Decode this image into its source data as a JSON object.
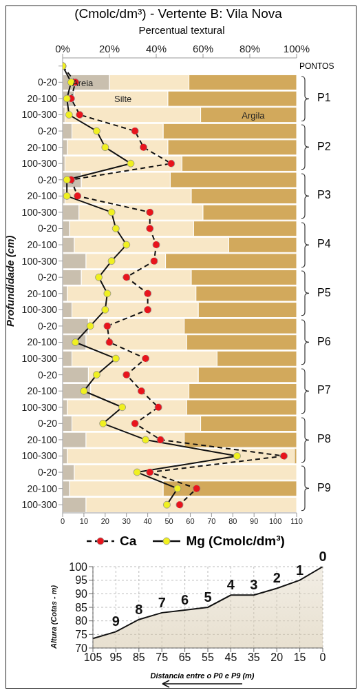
{
  "chart_data": [
    {
      "type": "bar",
      "orientation": "horizontal",
      "stacked": true,
      "title": "(Cmolc/dm³) - Vertente B: Vila Nova",
      "x2label": "Percentual textural",
      "ylabel": "Profundidade (cm)",
      "categories": [
        null,
        "0-20",
        "20-100",
        "100-300",
        "0-20",
        "20-100",
        "100-300",
        "0-20",
        "20-100",
        "100-300",
        "0-20",
        "20-100",
        "100-300",
        "0-20",
        "20-100",
        "100-300",
        "0-20",
        "20-100",
        "100-300",
        "0-20",
        "20-100",
        "100-300",
        "0-20",
        "20-100",
        "100-300",
        "0-20",
        "20-100",
        "100-300"
      ],
      "series": [
        {
          "name": "Areia",
          "color": "#c9bfae",
          "axis": "x2",
          "values": [
            null,
            20,
            5,
            1,
            4,
            2,
            1,
            8,
            1,
            7,
            3,
            5,
            10,
            8,
            2,
            4,
            11,
            10,
            4,
            11,
            12,
            2,
            4,
            10,
            2,
            5,
            3,
            10
          ]
        },
        {
          "name": "Silte",
          "color": "#f8e7c6",
          "axis": "x2",
          "values": [
            null,
            34,
            40,
            58,
            39,
            43,
            50,
            38,
            54,
            53,
            53,
            66,
            34,
            47,
            55,
            54,
            41,
            43,
            62,
            47,
            42,
            51,
            55,
            42,
            97,
            95,
            40,
            90
          ]
        },
        {
          "name": "Argila",
          "color": "#d2a95c",
          "axis": "x2",
          "values": [
            null,
            46,
            55,
            41,
            57,
            55,
            49,
            54,
            45,
            40,
            44,
            29,
            56,
            45,
            43,
            42,
            48,
            47,
            34,
            42,
            46,
            47,
            41,
            48,
            1,
            0,
            57,
            0
          ]
        },
        {
          "name": "Ca",
          "type": "line",
          "color": "#e8141c",
          "line_style": "dashed",
          "values": [
            0,
            6,
            4,
            8,
            34,
            38,
            51,
            4,
            7,
            41,
            41,
            44,
            43,
            30,
            40,
            40,
            21,
            22,
            39,
            30,
            37,
            45,
            34,
            46,
            104,
            41,
            63,
            55
          ]
        },
        {
          "name": "Mg (Cmolc/dm³)",
          "type": "line",
          "color": "#f0f020",
          "line_style": "solid",
          "values": [
            0,
            4,
            2,
            3,
            16,
            20,
            32,
            2,
            2,
            23,
            25,
            30,
            23,
            17,
            21,
            20,
            13,
            6,
            25,
            16,
            10,
            28,
            19,
            39,
            82,
            35,
            54,
            49
          ]
        }
      ],
      "x2lim": [
        0,
        100
      ],
      "x2ticks": [
        {
          "value": 0,
          "label": "0%"
        },
        {
          "value": 20,
          "label": "20%"
        },
        {
          "value": 40,
          "label": "40%"
        },
        {
          "value": 60,
          "label": "60%"
        },
        {
          "value": 80,
          "label": "80%"
        },
        {
          "value": 100,
          "label": "100%"
        }
      ],
      "xlim": [
        0,
        110
      ],
      "xticks": [
        0,
        10,
        20,
        30,
        40,
        50,
        60,
        70,
        80,
        90,
        100,
        110
      ],
      "marker": "circle",
      "legend": "bottom",
      "annotations": [
        "PONTOS",
        "P1",
        "P2",
        "P3",
        "P4",
        "P5",
        "P6",
        "P7",
        "P8",
        "P9"
      ]
    },
    {
      "type": "area",
      "categories": [
        "105",
        "95",
        "85",
        "75",
        "65",
        "55",
        "45",
        "35",
        "20",
        "15",
        "0"
      ],
      "values": [
        73.5,
        76,
        80.5,
        83,
        84,
        85,
        89.5,
        89.5,
        92,
        95,
        100
      ],
      "color": "#d8cbb0",
      "ylim": [
        70,
        100
      ],
      "yticks": [
        70,
        75,
        80,
        85,
        90,
        95,
        100
      ],
      "grid": true,
      "ylabel": "Altura (Cotas - m)",
      "xlabel": "Distancia entre o P0 e P9 (m)",
      "annotations": [
        {
          "text": "9",
          "x": "95",
          "y": 76
        },
        {
          "text": "8",
          "x": "85",
          "y": 80.5
        },
        {
          "text": "7",
          "x": "75",
          "y": 83
        },
        {
          "text": "6",
          "x": "65",
          "y": 84
        },
        {
          "text": "5",
          "x": "55",
          "y": 85
        },
        {
          "text": "4",
          "x": "45",
          "y": 89.5
        },
        {
          "text": "3",
          "x": "35",
          "y": 89.5
        },
        {
          "text": "2",
          "x": "20",
          "y": 92
        },
        {
          "text": "1",
          "x": "15",
          "y": 95
        },
        {
          "text": "0",
          "x": "0",
          "y": 100
        }
      ]
    }
  ]
}
